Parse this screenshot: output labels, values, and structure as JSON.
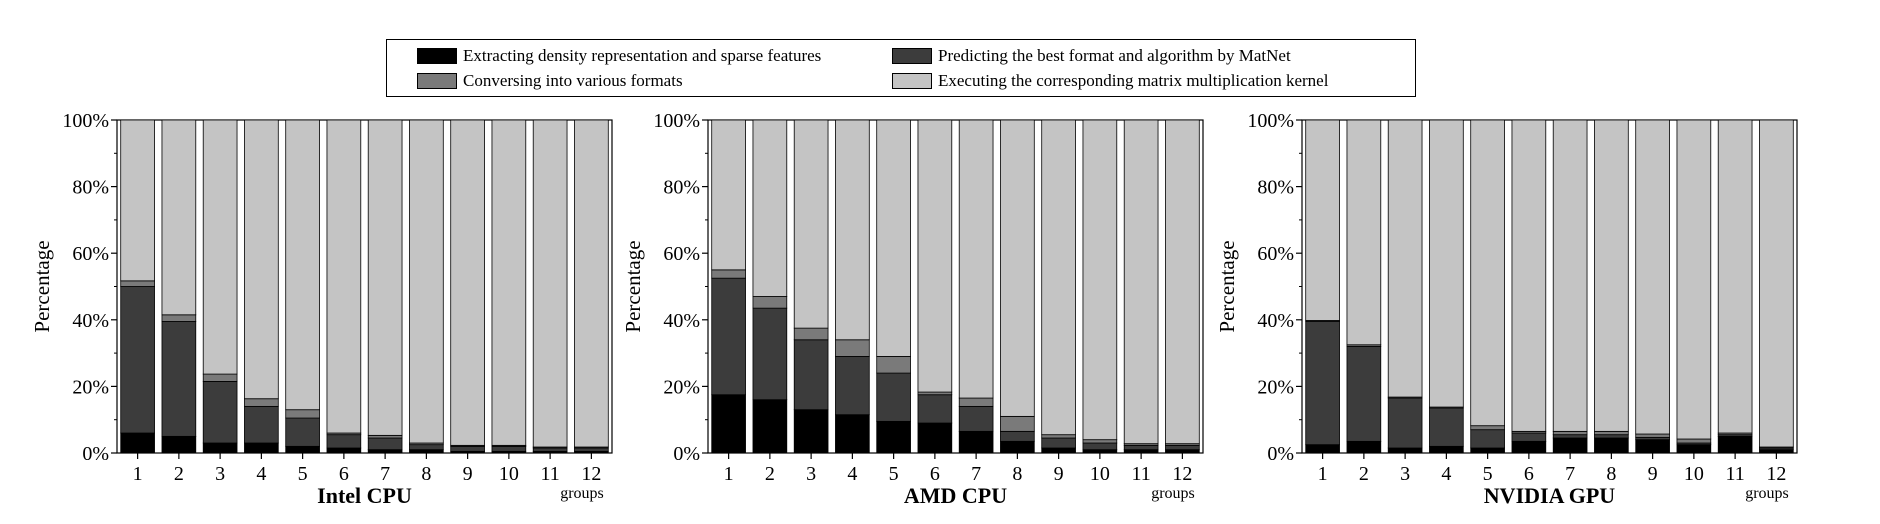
{
  "colors": {
    "extract": "#000000",
    "predict": "#3c3c3c",
    "convert": "#7a7a7a",
    "execute": "#c4c4c4"
  },
  "legend": [
    {
      "key": "extract",
      "label": "Extracting density representation and sparse features"
    },
    {
      "key": "predict",
      "label": "Predicting the best format and algorithm by MatNet"
    },
    {
      "key": "convert",
      "label": "Conversing into various formats"
    },
    {
      "key": "execute",
      "label": "Executing the corresponding matrix multiplication kernel"
    }
  ],
  "chart_data": [
    {
      "type": "bar",
      "stacked": true,
      "title": "Intel CPU",
      "ylabel": "Percentage",
      "xlabel": "groups",
      "ylim": [
        0,
        100
      ],
      "yticks": [
        "0%",
        "20%",
        "40%",
        "60%",
        "80%",
        "100%"
      ],
      "categories": [
        "1",
        "2",
        "3",
        "4",
        "5",
        "6",
        "7",
        "8",
        "9",
        "10",
        "11",
        "12"
      ],
      "series": [
        {
          "name": "Extracting density representation and sparse features",
          "key": "extract",
          "values": [
            6,
            5,
            3,
            3,
            2,
            1.5,
            1,
            1,
            0.5,
            0.5,
            0.5,
            0.5
          ]
        },
        {
          "name": "Predicting the best format and algorithm by MatNet",
          "key": "predict",
          "values": [
            44,
            34.5,
            18.5,
            11,
            8.5,
            4,
            3.5,
            1.5,
            1.5,
            1.5,
            1,
            1
          ]
        },
        {
          "name": "Conversing into various formats",
          "key": "convert",
          "values": [
            1.7,
            2,
            2.2,
            2.3,
            2.5,
            0.5,
            0.8,
            0.5,
            0.3,
            0.3,
            0.3,
            0.3
          ]
        },
        {
          "name": "Executing the corresponding matrix multiplication kernel",
          "key": "execute",
          "values": [
            48.3,
            58.5,
            76.3,
            83.7,
            87,
            94,
            94.7,
            97,
            97.7,
            97.7,
            98.2,
            98.2
          ]
        }
      ]
    },
    {
      "type": "bar",
      "stacked": true,
      "title": "AMD CPU",
      "ylabel": "Percentage",
      "xlabel": "groups",
      "ylim": [
        0,
        100
      ],
      "yticks": [
        "0%",
        "20%",
        "40%",
        "60%",
        "80%",
        "100%"
      ],
      "categories": [
        "1",
        "2",
        "3",
        "4",
        "5",
        "6",
        "7",
        "8",
        "9",
        "10",
        "11",
        "12"
      ],
      "series": [
        {
          "name": "Extracting density representation and sparse features",
          "key": "extract",
          "values": [
            17.5,
            16,
            13,
            11.5,
            9.5,
            9,
            6.5,
            3.5,
            1.5,
            1,
            1,
            1
          ]
        },
        {
          "name": "Predicting the best format and algorithm by MatNet",
          "key": "predict",
          "values": [
            35,
            27.5,
            21,
            17.5,
            14.5,
            8.5,
            7.5,
            3,
            3,
            2,
            1.3,
            1.3
          ]
        },
        {
          "name": "Conversing into various formats",
          "key": "convert",
          "values": [
            2.5,
            3.5,
            3.5,
            5,
            5,
            0.8,
            2.5,
            4.5,
            1,
            1,
            0.5,
            0.5
          ]
        },
        {
          "name": "Executing the corresponding matrix multiplication kernel",
          "key": "execute",
          "values": [
            45,
            53,
            62.5,
            66,
            71,
            81.7,
            83.5,
            89,
            94.5,
            96,
            97.2,
            97.2
          ]
        }
      ]
    },
    {
      "type": "bar",
      "stacked": true,
      "title": "NVIDIA GPU",
      "ylabel": "Percentage",
      "xlabel": "groups",
      "ylim": [
        0,
        100
      ],
      "yticks": [
        "0%",
        "20%",
        "40%",
        "60%",
        "80%",
        "100%"
      ],
      "categories": [
        "1",
        "2",
        "3",
        "4",
        "5",
        "6",
        "7",
        "8",
        "9",
        "10",
        "11",
        "12"
      ],
      "series": [
        {
          "name": "Extracting density representation and sparse features",
          "key": "extract",
          "values": [
            2.5,
            3.5,
            1.5,
            2,
            1.5,
            3.5,
            4.5,
            4.5,
            4,
            2.5,
            5,
            1
          ]
        },
        {
          "name": "Predicting the best format and algorithm by MatNet",
          "key": "predict",
          "values": [
            37,
            28.5,
            15,
            11.5,
            5.5,
            2.5,
            1,
            1,
            0.7,
            0.5,
            0.5,
            0.5
          ]
        },
        {
          "name": "Conversing into various formats",
          "key": "convert",
          "values": [
            0.3,
            0.5,
            0.3,
            0.3,
            1.2,
            0.5,
            1,
            1,
            1,
            1.2,
            0.5,
            0.3
          ]
        },
        {
          "name": "Executing the corresponding matrix multiplication kernel",
          "key": "execute",
          "values": [
            60.2,
            67.5,
            83.2,
            86.2,
            91.8,
            93.5,
            93.5,
            93.5,
            94.3,
            95.8,
            94,
            98.2
          ]
        }
      ]
    }
  ]
}
